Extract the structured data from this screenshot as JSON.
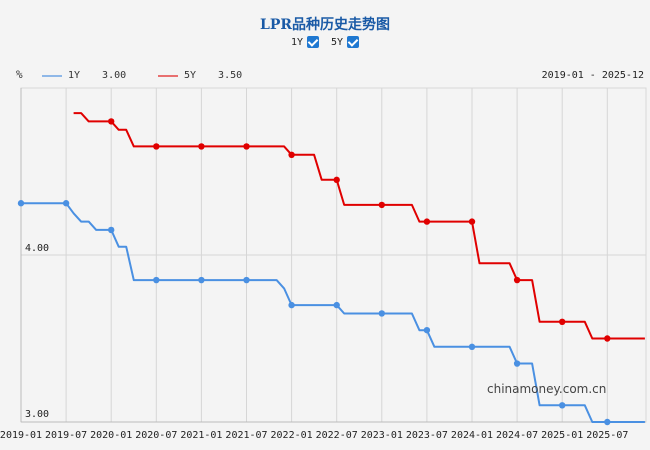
{
  "title": "LPR品种历史走势图",
  "toggles": [
    {
      "label": "1Y",
      "checked": true
    },
    {
      "label": "5Y",
      "checked": true
    }
  ],
  "unit": "%",
  "legend": [
    {
      "name": "1Y",
      "value": "3.00",
      "color": "#4a90e2"
    },
    {
      "name": "5Y",
      "value": "3.50",
      "color": "#e00000"
    }
  ],
  "date_range": "2019-01 - 2025-12",
  "watermark": "chinamoney.com.cn",
  "y_labels": [
    "4.00",
    "3.00"
  ],
  "x_labels": [
    "2019-01",
    "2019-07",
    "2020-01",
    "2020-07",
    "2021-01",
    "2021-07",
    "2022-01",
    "2022-07",
    "2023-01",
    "2023-07",
    "2024-01",
    "2024-07",
    "2025-01",
    "2025-07"
  ],
  "chart_data": {
    "type": "line",
    "title": "LPR品种历史走势图",
    "xlabel": "",
    "ylabel": "%",
    "ylim": [
      3.0,
      5.0
    ],
    "grid": true,
    "legend_position": "top-left",
    "x_range": "2019-01 - 2025-12",
    "x_ticks": [
      "2019-01",
      "2019-07",
      "2020-01",
      "2020-07",
      "2021-01",
      "2021-07",
      "2022-01",
      "2022-07",
      "2023-01",
      "2023-07",
      "2024-01",
      "2024-07",
      "2025-01",
      "2025-07"
    ],
    "y_ticks": [
      3.0,
      4.0
    ],
    "series": [
      {
        "name": "1Y",
        "color": "#4a90e2",
        "points": [
          [
            "2019-01",
            4.31
          ],
          [
            "2019-07",
            4.31
          ],
          [
            "2019-08",
            4.25
          ],
          [
            "2019-09",
            4.2
          ],
          [
            "2019-10",
            4.2
          ],
          [
            "2019-11",
            4.15
          ],
          [
            "2020-01",
            4.15
          ],
          [
            "2020-02",
            4.05
          ],
          [
            "2020-03",
            4.05
          ],
          [
            "2020-04",
            3.85
          ],
          [
            "2020-07",
            3.85
          ],
          [
            "2021-01",
            3.85
          ],
          [
            "2021-07",
            3.85
          ],
          [
            "2021-11",
            3.85
          ],
          [
            "2021-12",
            3.8
          ],
          [
            "2022-01",
            3.7
          ],
          [
            "2022-07",
            3.7
          ],
          [
            "2022-08",
            3.65
          ],
          [
            "2023-01",
            3.65
          ],
          [
            "2023-05",
            3.65
          ],
          [
            "2023-06",
            3.55
          ],
          [
            "2023-07",
            3.55
          ],
          [
            "2023-08",
            3.45
          ],
          [
            "2024-01",
            3.45
          ],
          [
            "2024-06",
            3.45
          ],
          [
            "2024-07",
            3.35
          ],
          [
            "2024-09",
            3.35
          ],
          [
            "2024-10",
            3.1
          ],
          [
            "2025-01",
            3.1
          ],
          [
            "2025-04",
            3.1
          ],
          [
            "2025-05",
            3.0
          ],
          [
            "2025-07",
            3.0
          ],
          [
            "2025-12",
            3.0
          ]
        ]
      },
      {
        "name": "5Y",
        "color": "#e00000",
        "points": [
          [
            "2019-08",
            4.85
          ],
          [
            "2019-09",
            4.85
          ],
          [
            "2019-10",
            4.8
          ],
          [
            "2020-01",
            4.8
          ],
          [
            "2020-02",
            4.75
          ],
          [
            "2020-03",
            4.75
          ],
          [
            "2020-04",
            4.65
          ],
          [
            "2020-07",
            4.65
          ],
          [
            "2021-01",
            4.65
          ],
          [
            "2021-07",
            4.65
          ],
          [
            "2021-12",
            4.65
          ],
          [
            "2022-01",
            4.6
          ],
          [
            "2022-04",
            4.6
          ],
          [
            "2022-05",
            4.45
          ],
          [
            "2022-07",
            4.45
          ],
          [
            "2022-08",
            4.3
          ],
          [
            "2023-01",
            4.3
          ],
          [
            "2023-05",
            4.3
          ],
          [
            "2023-06",
            4.2
          ],
          [
            "2023-07",
            4.2
          ],
          [
            "2024-01",
            4.2
          ],
          [
            "2024-02",
            3.95
          ],
          [
            "2024-06",
            3.95
          ],
          [
            "2024-07",
            3.85
          ],
          [
            "2024-09",
            3.85
          ],
          [
            "2024-10",
            3.6
          ],
          [
            "2025-01",
            3.6
          ],
          [
            "2025-04",
            3.6
          ],
          [
            "2025-05",
            3.5
          ],
          [
            "2025-07",
            3.5
          ],
          [
            "2025-12",
            3.5
          ]
        ]
      }
    ]
  }
}
